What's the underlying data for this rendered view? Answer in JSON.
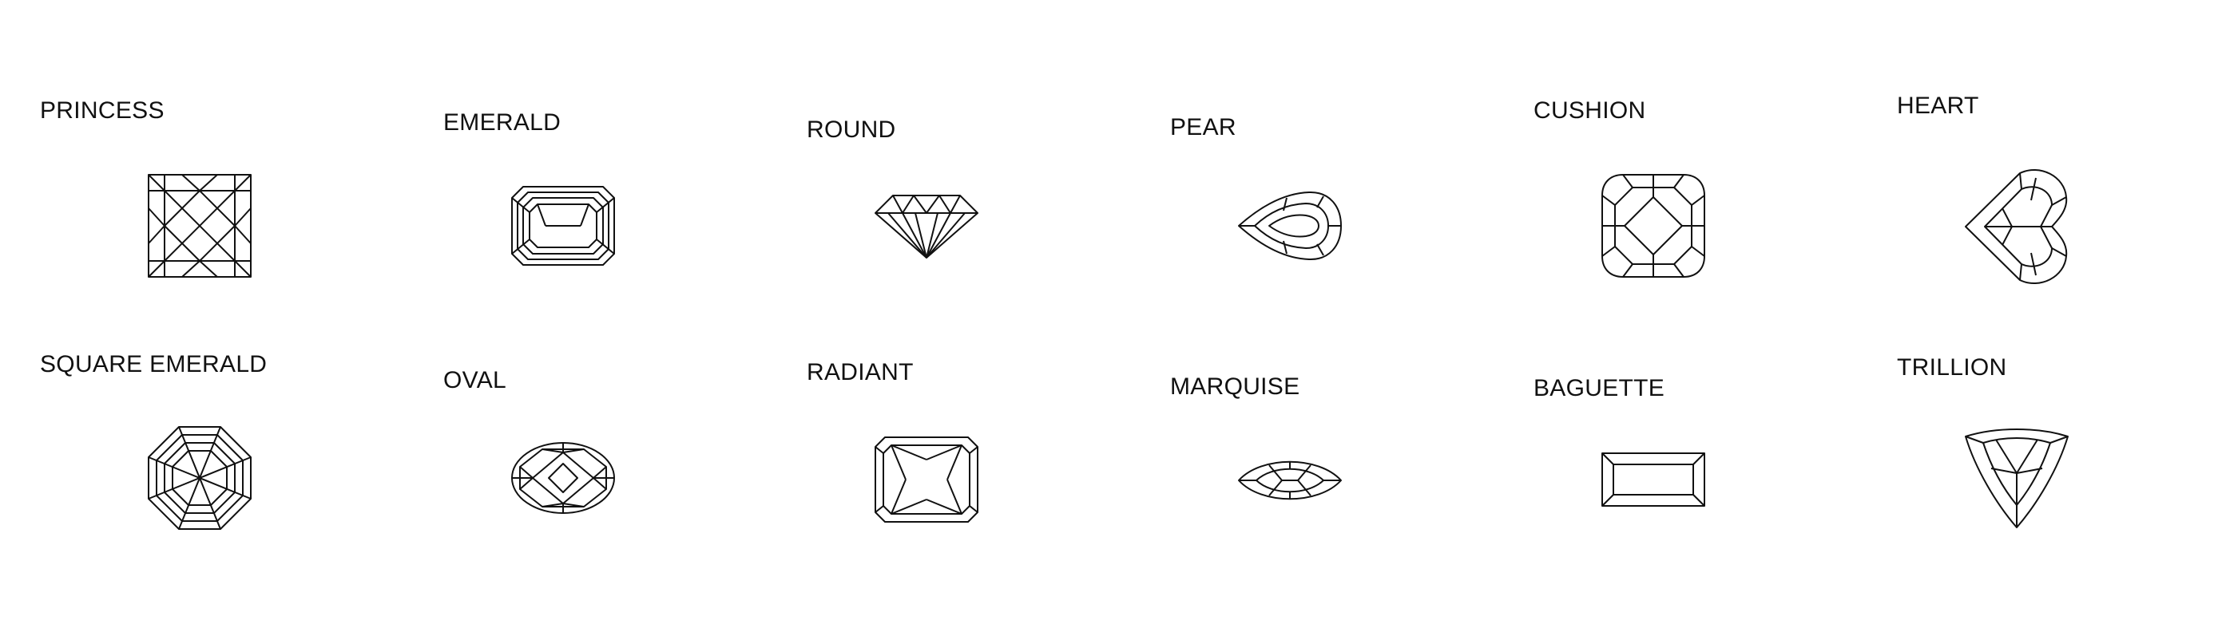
{
  "gems": {
    "princess": "PRINCESS",
    "emerald": "EMERALD",
    "round": "ROUND",
    "pear": "PEAR",
    "cushion": "CUSHION",
    "heart": "HEART",
    "square_emerald": "SQUARE EMERALD",
    "oval": "OVAL",
    "radiant": "RADIANT",
    "marquise": "MARQUISE",
    "baguette": "BAGUETTE",
    "trillion": "TRILLION"
  },
  "icons": [
    "princess-cut-icon",
    "emerald-cut-icon",
    "round-cut-icon",
    "pear-cut-icon",
    "cushion-cut-icon",
    "heart-cut-icon",
    "square-emerald-cut-icon",
    "oval-cut-icon",
    "radiant-cut-icon",
    "marquise-cut-icon",
    "baguette-cut-icon",
    "trillion-cut-icon"
  ],
  "colors": {
    "line": "#111111",
    "background": "#ffffff"
  }
}
